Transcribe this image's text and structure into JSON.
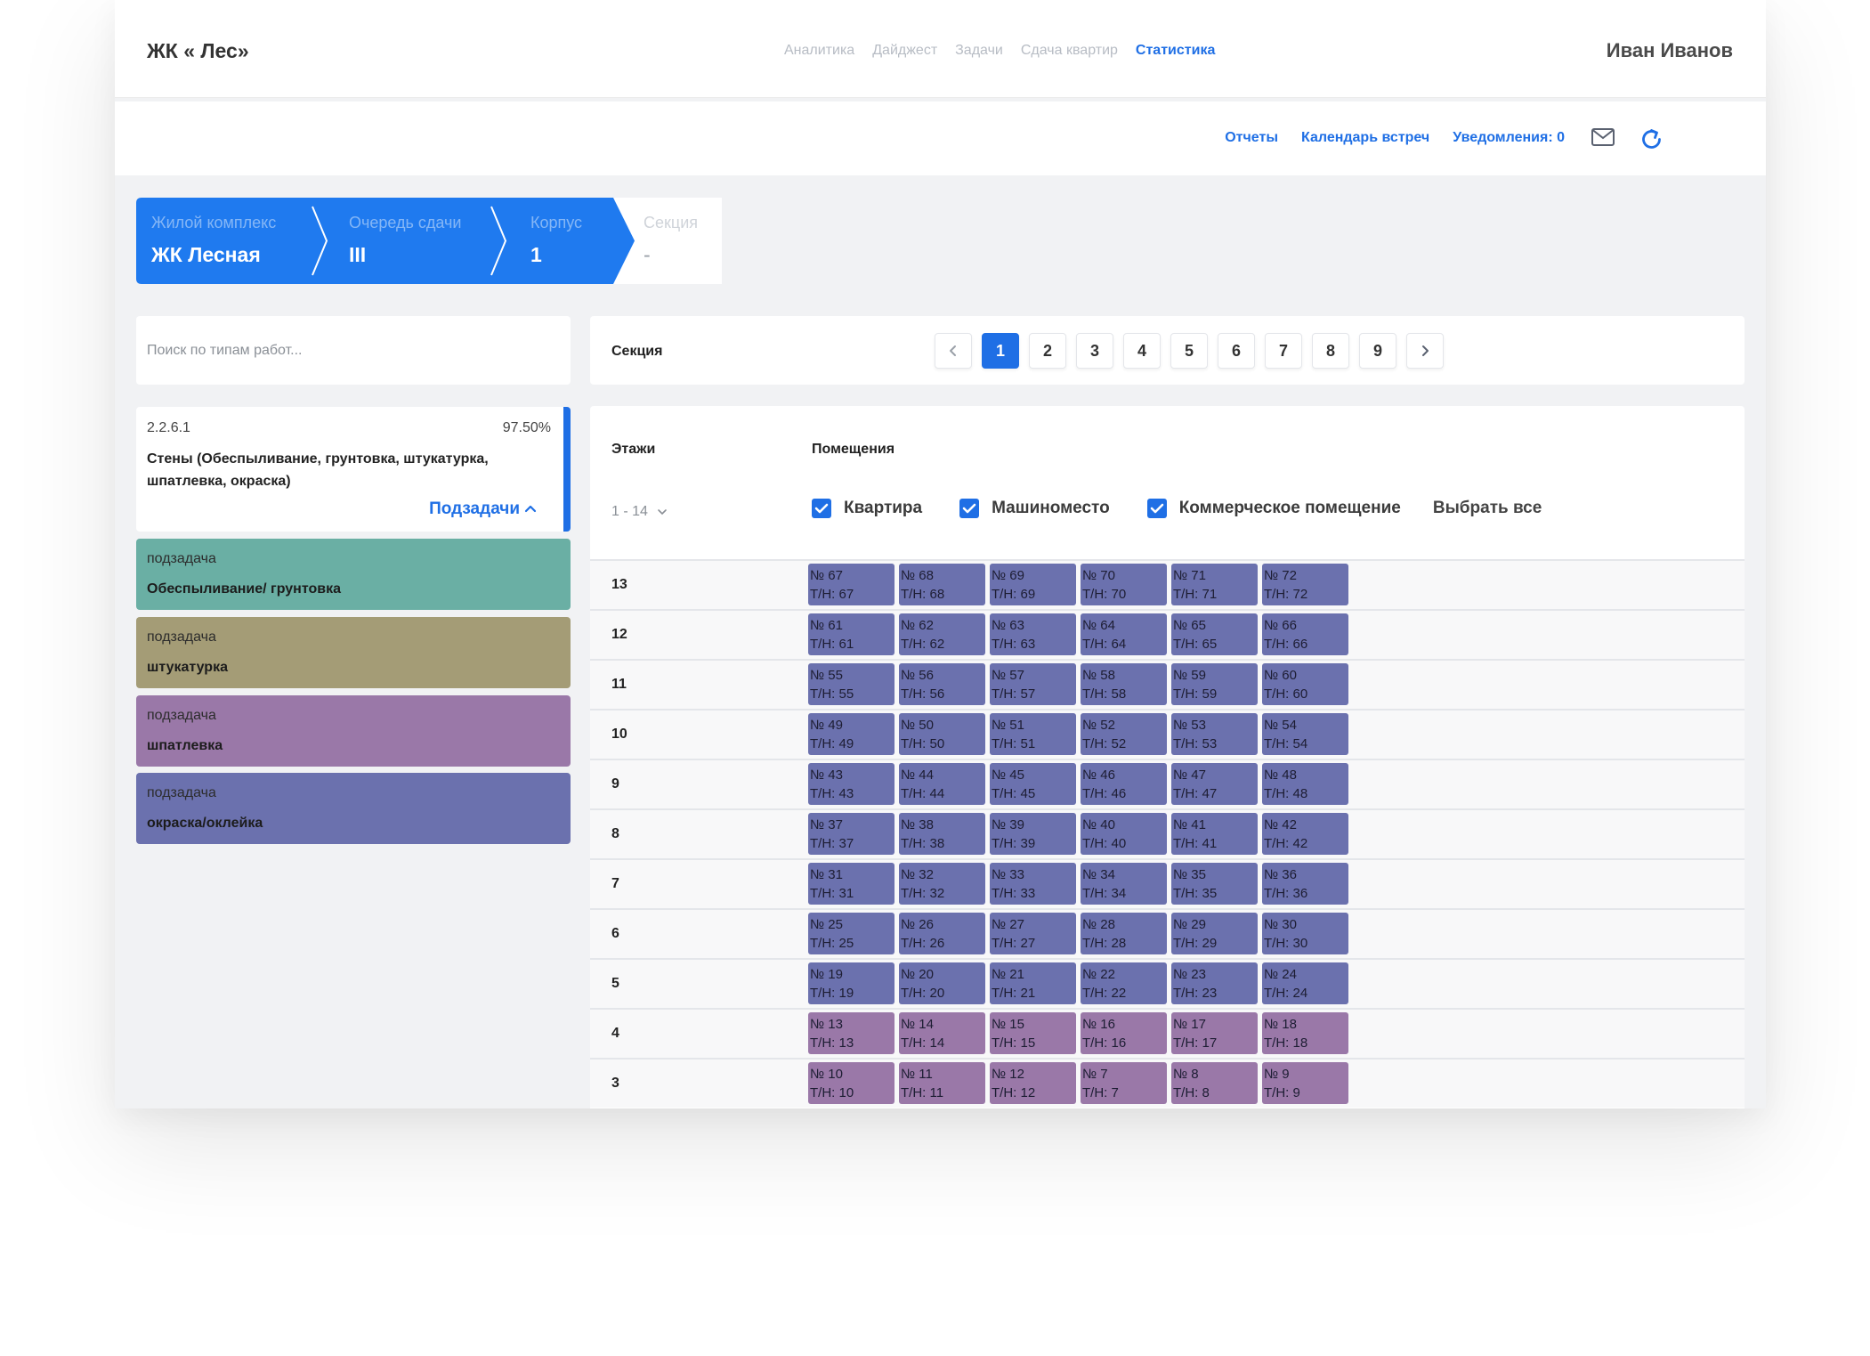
{
  "header": {
    "brand": "ЖК « Лес»",
    "nav": [
      "Аналитика",
      "Дайджест",
      "Задачи",
      "Сдача квартир",
      "Статистика"
    ],
    "active_nav": "Статистика",
    "user": "Иван Иванов"
  },
  "subbar": {
    "reports": "Отчеты",
    "calendar": "Календарь встреч",
    "notifications": "Уведомления: 0"
  },
  "breadcrumb": [
    {
      "label": "Жилой комплекс",
      "value": "ЖК Лесная"
    },
    {
      "label": "Очередь сдачи",
      "value": "III"
    },
    {
      "label": "Корпус",
      "value": "1"
    },
    {
      "label": "Секция",
      "value": "-"
    }
  ],
  "search": {
    "placeholder": "Поиск по типам работ..."
  },
  "task": {
    "code": "2.2.6.1",
    "percent": "97.50%",
    "title": "Стены (Обеспыливание, грунтовка, штукатурка, шпатлевка, окраска)",
    "subtasks_link": "Подзадачи"
  },
  "subtasks": [
    {
      "kind": "подзадача",
      "name": "Обеспыливание/ грунтовка",
      "color": "#6aafa4"
    },
    {
      "kind": "подзадача",
      "name": "штукатурка",
      "color": "#a49c76"
    },
    {
      "kind": "подзадача",
      "name": "шпатлевка",
      "color": "#9a78a8"
    },
    {
      "kind": "подзадача",
      "name": "окраска/оклейка",
      "color": "#6b71ae"
    }
  ],
  "pager": {
    "label": "Секция",
    "pages": [
      "1",
      "2",
      "3",
      "4",
      "5",
      "6",
      "7",
      "8",
      "9"
    ],
    "active": "1"
  },
  "grid": {
    "floors_header": "Этажи",
    "rooms_header": "Помещения",
    "floor_range": "1 - 14",
    "filters": [
      "Квартира",
      "Машиноместо",
      "Коммерческое помещение"
    ],
    "select_all": "Выбрать все",
    "rows": [
      {
        "floor": "13",
        "color": "blue",
        "cells": [
          [
            "№ 67",
            "Т/Н: 67"
          ],
          [
            "№ 68",
            "Т/Н: 68"
          ],
          [
            "№ 69",
            "Т/Н: 69"
          ],
          [
            "№ 70",
            "Т/Н: 70"
          ],
          [
            "№ 71",
            "Т/Н: 71"
          ],
          [
            "№ 72",
            "Т/Н: 72"
          ]
        ]
      },
      {
        "floor": "12",
        "color": "blue",
        "cells": [
          [
            "№ 61",
            "Т/Н: 61"
          ],
          [
            "№ 62",
            "Т/Н: 62"
          ],
          [
            "№ 63",
            "Т/Н: 63"
          ],
          [
            "№ 64",
            "Т/Н: 64"
          ],
          [
            "№ 65",
            "Т/Н: 65"
          ],
          [
            "№ 66",
            "Т/Н: 66"
          ]
        ]
      },
      {
        "floor": "11",
        "color": "blue",
        "cells": [
          [
            "№ 55",
            "Т/Н: 55"
          ],
          [
            "№ 56",
            "Т/Н: 56"
          ],
          [
            "№ 57",
            "Т/Н: 57"
          ],
          [
            "№ 58",
            "Т/Н: 58"
          ],
          [
            "№ 59",
            "Т/Н: 59"
          ],
          [
            "№ 60",
            "Т/Н: 60"
          ]
        ]
      },
      {
        "floor": "10",
        "color": "blue",
        "cells": [
          [
            "№ 49",
            "Т/Н: 49"
          ],
          [
            "№ 50",
            "Т/Н: 50"
          ],
          [
            "№ 51",
            "Т/Н: 51"
          ],
          [
            "№ 52",
            "Т/Н: 52"
          ],
          [
            "№ 53",
            "Т/Н: 53"
          ],
          [
            "№ 54",
            "Т/Н: 54"
          ]
        ]
      },
      {
        "floor": "9",
        "color": "blue",
        "cells": [
          [
            "№ 43",
            "Т/Н: 43"
          ],
          [
            "№ 44",
            "Т/Н: 44"
          ],
          [
            "№ 45",
            "Т/Н: 45"
          ],
          [
            "№ 46",
            "Т/Н: 46"
          ],
          [
            "№ 47",
            "Т/Н: 47"
          ],
          [
            "№ 48",
            "Т/Н: 48"
          ]
        ]
      },
      {
        "floor": "8",
        "color": "blue",
        "cells": [
          [
            "№ 37",
            "Т/Н: 37"
          ],
          [
            "№ 38",
            "Т/Н: 38"
          ],
          [
            "№ 39",
            "Т/Н: 39"
          ],
          [
            "№ 40",
            "Т/Н: 40"
          ],
          [
            "№ 41",
            "Т/Н: 41"
          ],
          [
            "№ 42",
            "Т/Н: 42"
          ]
        ]
      },
      {
        "floor": "7",
        "color": "blue",
        "cells": [
          [
            "№ 31",
            "Т/Н: 31"
          ],
          [
            "№ 32",
            "Т/Н: 32"
          ],
          [
            "№ 33",
            "Т/Н: 33"
          ],
          [
            "№ 34",
            "Т/Н: 34"
          ],
          [
            "№ 35",
            "Т/Н: 35"
          ],
          [
            "№ 36",
            "Т/Н: 36"
          ]
        ]
      },
      {
        "floor": "6",
        "color": "blue",
        "cells": [
          [
            "№ 25",
            "Т/Н: 25"
          ],
          [
            "№ 26",
            "Т/Н: 26"
          ],
          [
            "№ 27",
            "Т/Н: 27"
          ],
          [
            "№ 28",
            "Т/Н: 28"
          ],
          [
            "№ 29",
            "Т/Н: 29"
          ],
          [
            "№ 30",
            "Т/Н: 30"
          ]
        ]
      },
      {
        "floor": "5",
        "color": "blue",
        "cells": [
          [
            "№ 19",
            "Т/Н: 19"
          ],
          [
            "№ 20",
            "Т/Н: 20"
          ],
          [
            "№ 21",
            "Т/Н: 21"
          ],
          [
            "№ 22",
            "Т/Н: 22"
          ],
          [
            "№ 23",
            "Т/Н: 23"
          ],
          [
            "№ 24",
            "Т/Н: 24"
          ]
        ]
      },
      {
        "floor": "4",
        "color": "purple",
        "cells": [
          [
            "№ 13",
            "Т/Н: 13"
          ],
          [
            "№ 14",
            "Т/Н: 14"
          ],
          [
            "№ 15",
            "Т/Н: 15"
          ],
          [
            "№ 16",
            "Т/Н: 16"
          ],
          [
            "№ 17",
            "Т/Н: 17"
          ],
          [
            "№ 18",
            "Т/Н: 18"
          ]
        ]
      },
      {
        "floor": "3",
        "color": "purple",
        "cells": [
          [
            "№ 10",
            "Т/Н: 10"
          ],
          [
            "№ 11",
            "Т/Н: 11"
          ],
          [
            "№ 12",
            "Т/Н: 12"
          ],
          [
            "№ 7",
            "Т/Н: 7"
          ],
          [
            "№ 8",
            "Т/Н: 8"
          ],
          [
            "№ 9",
            "Т/Н: 9"
          ]
        ]
      }
    ]
  },
  "colors": {
    "accent": "#1f6fe5",
    "cell_blue": "#6b71ae",
    "cell_purple": "#9a78a8"
  }
}
